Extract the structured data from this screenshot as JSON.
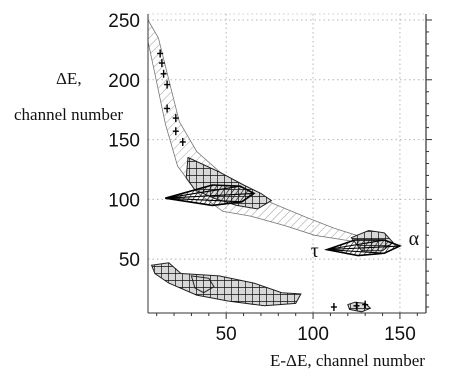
{
  "chart_data": {
    "type": "scatter",
    "title": "",
    "xlabel": "E-ΔE, channel number",
    "ylabel_line1": "ΔE,",
    "ylabel_line2": "channel number",
    "xlim": [
      5,
      165
    ],
    "ylim": [
      5,
      255
    ],
    "x_ticks": [
      50,
      100,
      150
    ],
    "y_ticks": [
      50,
      100,
      150,
      200,
      250
    ],
    "grid": true,
    "annotations": [
      {
        "text": "τ",
        "x": 101,
        "y": 52
      },
      {
        "text": "α",
        "x": 158,
        "y": 62
      }
    ],
    "bands": [
      {
        "polygon": [
          [
            5,
            250
          ],
          [
            11,
            235
          ],
          [
            17,
            200
          ],
          [
            23,
            165
          ],
          [
            33,
            140
          ],
          [
            47,
            122
          ],
          [
            62,
            106
          ],
          [
            78,
            96
          ],
          [
            96,
            85
          ],
          [
            112,
            76
          ],
          [
            125,
            70
          ],
          [
            136,
            72
          ],
          [
            132,
            63
          ],
          [
            118,
            66
          ],
          [
            101,
            70
          ],
          [
            84,
            78
          ],
          [
            64,
            86
          ],
          [
            48,
            90
          ],
          [
            33,
            106
          ],
          [
            22,
            128
          ],
          [
            15,
            163
          ],
          [
            9,
            205
          ],
          [
            5,
            232
          ]
        ]
      }
    ],
    "wedges": [
      {
        "polygon": [
          [
            15,
            101
          ],
          [
            42,
            112
          ],
          [
            58,
            111
          ],
          [
            66,
            105
          ],
          [
            59,
            98
          ],
          [
            42,
            95
          ]
        ]
      },
      {
        "polygon": [
          [
            108,
            58
          ],
          [
            124,
            66
          ],
          [
            141,
            66
          ],
          [
            150,
            61
          ],
          [
            141,
            55
          ],
          [
            126,
            53
          ]
        ]
      }
    ],
    "clusters": [
      {
        "polygon": [
          [
            28,
            135
          ],
          [
            46,
            123
          ],
          [
            60,
            112
          ],
          [
            70,
            105
          ],
          [
            76,
            99
          ],
          [
            68,
            92
          ],
          [
            56,
            95
          ],
          [
            43,
            101
          ],
          [
            32,
            108
          ],
          [
            27,
            118
          ]
        ]
      },
      {
        "polygon": [
          [
            7,
            45
          ],
          [
            17,
            47
          ],
          [
            24,
            38
          ],
          [
            46,
            36
          ],
          [
            66,
            30
          ],
          [
            82,
            22
          ],
          [
            93,
            21
          ],
          [
            90,
            13
          ],
          [
            72,
            11
          ],
          [
            51,
            15
          ],
          [
            33,
            20
          ],
          [
            17,
            30
          ],
          [
            9,
            38
          ]
        ]
      },
      {
        "polygon": [
          [
            30,
            36
          ],
          [
            40,
            34
          ],
          [
            43,
            27
          ],
          [
            37,
            22
          ],
          [
            32,
            26
          ]
        ]
      },
      {
        "polygon": [
          [
            120,
            12
          ],
          [
            124,
            14
          ],
          [
            130,
            13
          ],
          [
            133,
            9
          ],
          [
            128,
            6
          ],
          [
            121,
            8
          ]
        ]
      },
      {
        "polygon": [
          [
            122,
            68
          ],
          [
            132,
            74
          ],
          [
            141,
            72
          ],
          [
            146,
            64
          ],
          [
            140,
            57
          ],
          [
            128,
            57
          ]
        ]
      }
    ],
    "scatter_points": [
      {
        "x": 12,
        "y": 222
      },
      {
        "x": 13,
        "y": 214
      },
      {
        "x": 14,
        "y": 205
      },
      {
        "x": 16,
        "y": 196
      },
      {
        "x": 16,
        "y": 176
      },
      {
        "x": 21,
        "y": 168
      },
      {
        "x": 21,
        "y": 157
      },
      {
        "x": 25,
        "y": 148
      },
      {
        "x": 112,
        "y": 10
      },
      {
        "x": 125,
        "y": 11
      },
      {
        "x": 130,
        "y": 12
      }
    ]
  }
}
